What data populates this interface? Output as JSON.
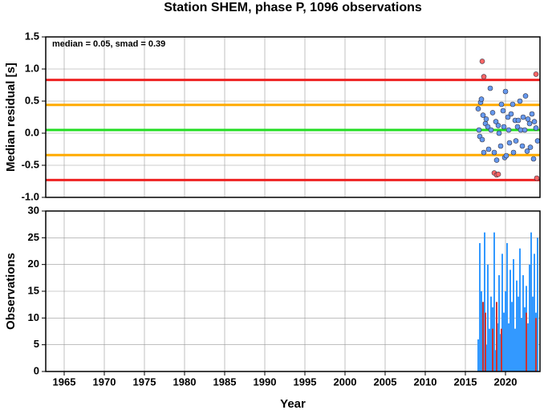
{
  "chart_data": [
    {
      "type": "scatter",
      "title": "Station SHEM, phase P, 1096 observations",
      "y_label": "Median residual [s]",
      "annotation": "median = 0.05, smad = 0.39",
      "xlim": [
        1962.7,
        2024.3
      ],
      "ylim": [
        -1.0,
        1.5
      ],
      "yticks": [
        {
          "value": -1.0,
          "label": "-1.0"
        },
        {
          "value": -0.5,
          "label": "-0.5"
        },
        {
          "value": 0.0,
          "label": "0.0"
        },
        {
          "value": 0.5,
          "label": "0.5"
        },
        {
          "value": 1.0,
          "label": "1.0"
        },
        {
          "value": 1.5,
          "label": "1.5"
        }
      ],
      "grid": true,
      "hlines": [
        {
          "value": 0.83,
          "color": "#ee2222"
        },
        {
          "value": 0.44,
          "color": "#ffaa00"
        },
        {
          "value": 0.05,
          "color": "#22dd22"
        },
        {
          "value": -0.34,
          "color": "#ffaa00"
        },
        {
          "value": -0.73,
          "color": "#ee2222"
        }
      ],
      "series": [
        {
          "color": "#6699ee",
          "x": [
            2016.6,
            2016.7,
            2016.8,
            2016.9,
            2017.0,
            2017.1,
            2017.2,
            2017.3,
            2017.5,
            2017.6,
            2017.8,
            2017.9,
            2018.1,
            2018.2,
            2018.4,
            2018.6,
            2018.8,
            2018.9,
            2019.1,
            2019.2,
            2019.4,
            2019.5,
            2019.7,
            2019.8,
            2019.9,
            2020.0,
            2020.1,
            2020.3,
            2020.4,
            2020.5,
            2020.7,
            2020.9,
            2021.0,
            2021.2,
            2021.3,
            2021.5,
            2021.6,
            2021.8,
            2021.9,
            2022.1,
            2022.2,
            2022.4,
            2022.5,
            2022.7,
            2022.8,
            2023.0,
            2023.1,
            2023.3,
            2023.5,
            2023.6,
            2023.8,
            2024.0
          ],
          "values": [
            0.38,
            0.05,
            -0.05,
            0.48,
            0.53,
            -0.1,
            0.28,
            -0.3,
            0.15,
            0.22,
            0.1,
            -0.25,
            0.7,
            0.05,
            0.32,
            -0.3,
            0.18,
            -0.42,
            0.12,
            0.0,
            -0.2,
            0.45,
            0.35,
            0.1,
            -0.38,
            0.65,
            -0.35,
            0.25,
            0.05,
            -0.15,
            0.3,
            0.45,
            -0.3,
            0.2,
            -0.12,
            0.1,
            0.2,
            0.5,
            0.05,
            -0.2,
            0.25,
            0.05,
            0.58,
            -0.28,
            0.22,
            0.15,
            -0.22,
            0.3,
            -0.4,
            0.18,
            0.08,
            -0.12
          ]
        },
        {
          "color": "#ff6666",
          "x": [
            2017.1,
            2017.3,
            2018.6,
            2018.9,
            2019.1,
            2023.8,
            2023.9
          ],
          "values": [
            1.12,
            0.88,
            -0.62,
            -0.65,
            -0.64,
            0.92,
            -0.7
          ]
        }
      ]
    },
    {
      "type": "bar",
      "x_label": "Year",
      "y_label": "Observations",
      "xlim": [
        1962.7,
        2024.3
      ],
      "ylim": [
        0,
        30
      ],
      "xticks": [
        1965,
        1970,
        1975,
        1980,
        1985,
        1990,
        1995,
        2000,
        2005,
        2010,
        2015,
        2020
      ],
      "yticks": [
        0,
        5,
        10,
        15,
        20,
        25,
        30
      ],
      "grid": true,
      "series": [
        {
          "color": "#3399ff",
          "x": [
            2016.6,
            2016.8,
            2017.0,
            2017.2,
            2017.4,
            2017.6,
            2017.8,
            2018.0,
            2018.2,
            2018.4,
            2018.6,
            2018.8,
            2019.0,
            2019.2,
            2019.4,
            2019.6,
            2019.8,
            2020.0,
            2020.2,
            2020.4,
            2020.6,
            2020.8,
            2021.0,
            2021.2,
            2021.4,
            2021.6,
            2021.8,
            2022.0,
            2022.2,
            2022.4,
            2022.6,
            2022.8,
            2023.0,
            2023.2,
            2023.4,
            2023.6,
            2023.8,
            2024.0
          ],
          "values": [
            6,
            24,
            15,
            10,
            26,
            5,
            20,
            8,
            14,
            12,
            26,
            4,
            9,
            18,
            7,
            22,
            11,
            15,
            24,
            9,
            19,
            13,
            21,
            8,
            17,
            14,
            23,
            10,
            18,
            12,
            16,
            9,
            20,
            26,
            14,
            22,
            11,
            25
          ]
        },
        {
          "color": "#cc3333",
          "x": [
            2017.2,
            2017.5,
            2018.4,
            2018.9,
            2019.5,
            2022.6,
            2023.8
          ],
          "values": [
            13,
            11,
            8,
            13,
            8,
            11,
            10
          ]
        }
      ]
    }
  ]
}
